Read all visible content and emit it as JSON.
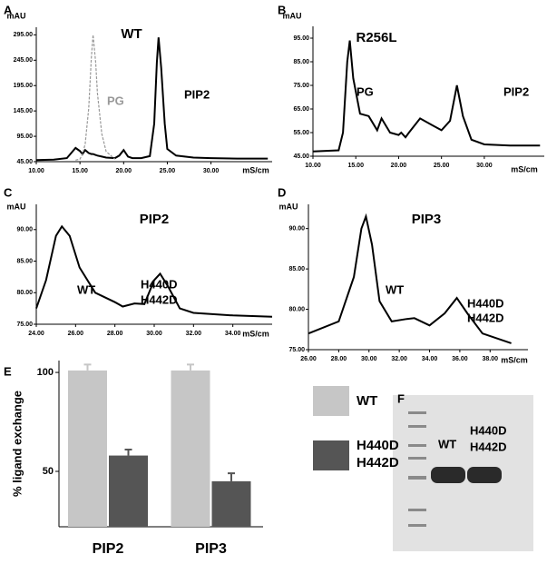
{
  "chart_data": [
    {
      "type": "line",
      "panel": "A",
      "title": "WT",
      "ylabel": "mAU",
      "xlabel": "mS/cm",
      "x": [
        10,
        12,
        13.5,
        14,
        14.5,
        15,
        15.3,
        15.6,
        16,
        16.3,
        16.5,
        16.8,
        17,
        17.5,
        18,
        19,
        19.5,
        20,
        20.5,
        21,
        22,
        23,
        23.5,
        23.8,
        24,
        24.3,
        24.7,
        25,
        26,
        28,
        30,
        33,
        36.5
      ],
      "series": [
        {
          "name": "WT",
          "color": "#000000",
          "dashed": false,
          "values": [
            48,
            49,
            52,
            62,
            72,
            66,
            60,
            68,
            62,
            60,
            60,
            58,
            57,
            55,
            53,
            52,
            57,
            68,
            55,
            52,
            52,
            56,
            120,
            240,
            290,
            230,
            120,
            70,
            57,
            53,
            52,
            51,
            51
          ]
        },
        {
          "name": "PG",
          "color": "#999999",
          "dashed": true,
          "values": [
            null,
            null,
            null,
            null,
            48,
            50,
            60,
            80,
            150,
            250,
            295,
            240,
            180,
            100,
            65,
            50,
            null,
            null,
            null,
            null,
            null,
            null,
            null,
            null,
            null,
            null,
            null,
            null,
            null,
            null,
            null,
            null,
            null
          ]
        }
      ],
      "annotations": [
        {
          "text": "PG",
          "color": "#999999"
        },
        {
          "text": "PIP2",
          "color": "#000000"
        }
      ],
      "xlim": [
        10,
        37
      ],
      "ylim": [
        45,
        310
      ],
      "xticks": [
        {
          "value": 10,
          "label": "10.00"
        },
        {
          "value": 15,
          "label": "15.00"
        },
        {
          "value": 20,
          "label": "20.00"
        },
        {
          "value": 25,
          "label": "25.00"
        },
        {
          "value": 30,
          "label": "30.00"
        }
      ],
      "yticks": [
        {
          "value": 45,
          "label": "45.00"
        },
        {
          "value": 95,
          "label": "95.00"
        },
        {
          "value": 145,
          "label": "145.00"
        },
        {
          "value": 195,
          "label": "195.00"
        },
        {
          "value": 245,
          "label": "245.00"
        },
        {
          "value": 295,
          "label": "295.00"
        }
      ]
    },
    {
      "type": "line",
      "panel": "B",
      "title": "R256L",
      "ylabel": "mAU",
      "xlabel": "mS/cm",
      "x": [
        10,
        13,
        13.5,
        14,
        14.3,
        14.7,
        15.5,
        16.5,
        17.5,
        18,
        19,
        20,
        20.3,
        20.8,
        21.2,
        22.5,
        24,
        25,
        26,
        26.8,
        27.5,
        28.5,
        30,
        33,
        36.5
      ],
      "series": [
        {
          "name": "R256L",
          "color": "#000000",
          "dashed": false,
          "values": [
            47,
            47.5,
            55,
            85,
            94,
            78,
            63,
            62,
            56,
            61,
            55,
            54,
            55,
            53,
            55,
            61,
            58,
            56,
            60,
            75,
            62,
            52,
            50,
            49.5,
            49.5
          ]
        }
      ],
      "annotations": [
        {
          "text": "PG",
          "color": "#000000"
        },
        {
          "text": "PIP2",
          "color": "#000000"
        }
      ],
      "xlim": [
        10,
        37
      ],
      "ylim": [
        45,
        100
      ],
      "xticks": [
        {
          "value": 10,
          "label": "10.00"
        },
        {
          "value": 15,
          "label": "15.00"
        },
        {
          "value": 20,
          "label": "20.00"
        },
        {
          "value": 25,
          "label": "25.00"
        },
        {
          "value": 30,
          "label": "30.00"
        }
      ],
      "yticks": [
        {
          "value": 45,
          "label": "45.00"
        },
        {
          "value": 55,
          "label": "55.00"
        },
        {
          "value": 65,
          "label": "65.00"
        },
        {
          "value": 75,
          "label": "75.00"
        },
        {
          "value": 85,
          "label": "85.00"
        },
        {
          "value": 95,
          "label": "95.00"
        }
      ]
    },
    {
      "type": "line",
      "panel": "C",
      "title": "PIP2",
      "ylabel": "mAU",
      "xlabel": "mS/cm",
      "x": [
        24,
        24.5,
        25,
        25.3,
        25.7,
        26.2,
        27,
        28,
        28.4,
        29,
        29.5,
        30,
        30.3,
        30.7,
        31.3,
        32,
        34,
        36
      ],
      "series": [
        {
          "name": "PIP2",
          "color": "#000000",
          "dashed": false,
          "values": [
            77.5,
            82,
            89,
            90.5,
            89,
            84,
            80,
            78.5,
            77.8,
            78.3,
            78.2,
            82,
            83,
            81,
            77.5,
            76.8,
            76.4,
            76.2
          ]
        }
      ],
      "annotations": [
        {
          "text": "WT",
          "color": "#000000"
        },
        {
          "text": "H440D",
          "color": "#000000"
        },
        {
          "text": "H442D",
          "color": "#000000"
        }
      ],
      "xlim": [
        24,
        36
      ],
      "ylim": [
        75,
        94
      ],
      "xticks": [
        {
          "value": 24,
          "label": "24.00"
        },
        {
          "value": 26,
          "label": "26.00"
        },
        {
          "value": 28,
          "label": "28.00"
        },
        {
          "value": 30,
          "label": "30.00"
        },
        {
          "value": 32,
          "label": "32.00"
        },
        {
          "value": 34,
          "label": "34.00"
        }
      ],
      "yticks": [
        {
          "value": 75,
          "label": "75.00"
        },
        {
          "value": 80,
          "label": "80.00"
        },
        {
          "value": 85,
          "label": "85.00"
        },
        {
          "value": 90,
          "label": "90.00"
        }
      ]
    },
    {
      "type": "line",
      "panel": "D",
      "title": "PIP3",
      "ylabel": "mAU",
      "xlabel": "mS/cm",
      "x": [
        26,
        28,
        29,
        29.5,
        29.8,
        30.2,
        30.7,
        31.5,
        32.5,
        33,
        34,
        35,
        35.8,
        36.5,
        37.5,
        39.4
      ],
      "series": [
        {
          "name": "PIP3",
          "color": "#000000",
          "dashed": false,
          "values": [
            77,
            78.5,
            84,
            90,
            91.5,
            88,
            81,
            78.5,
            78.8,
            78.9,
            78,
            79.5,
            81.4,
            79.5,
            77,
            75.8
          ]
        }
      ],
      "annotations": [
        {
          "text": "WT",
          "color": "#000000"
        },
        {
          "text": "H440D",
          "color": "#000000"
        },
        {
          "text": "H442D",
          "color": "#000000"
        }
      ],
      "xlim": [
        26,
        40.5
      ],
      "ylim": [
        75,
        93
      ],
      "xticks": [
        {
          "value": 26,
          "label": "26.00"
        },
        {
          "value": 28,
          "label": "28.00"
        },
        {
          "value": 30,
          "label": "30.00"
        },
        {
          "value": 32,
          "label": "32.00"
        },
        {
          "value": 34,
          "label": "34.00"
        },
        {
          "value": 36,
          "label": "36.00"
        },
        {
          "value": 38,
          "label": "38.00"
        }
      ],
      "yticks": [
        {
          "value": 75,
          "label": "75.00"
        },
        {
          "value": 80,
          "label": "80.00"
        },
        {
          "value": 85,
          "label": "85.00"
        },
        {
          "value": 90,
          "label": "90.00"
        }
      ]
    },
    {
      "type": "bar",
      "panel": "E",
      "ylabel": "% ligand exchange",
      "categories": [
        "PIP2",
        "PIP3"
      ],
      "series": [
        {
          "name": "WT",
          "color": "#c6c6c6",
          "values": [
            101,
            101
          ],
          "errors": [
            3,
            3
          ]
        },
        {
          "name": "H440D H442D",
          "color": "#555555",
          "values": [
            58,
            45
          ],
          "errors": [
            3,
            4
          ]
        }
      ],
      "ylim": [
        22,
        106
      ],
      "yticks": [
        50,
        100
      ]
    }
  ],
  "gel": {
    "panel": "F",
    "lanes": [
      [
        "WT"
      ],
      [
        "H440D",
        "H442D"
      ]
    ]
  }
}
